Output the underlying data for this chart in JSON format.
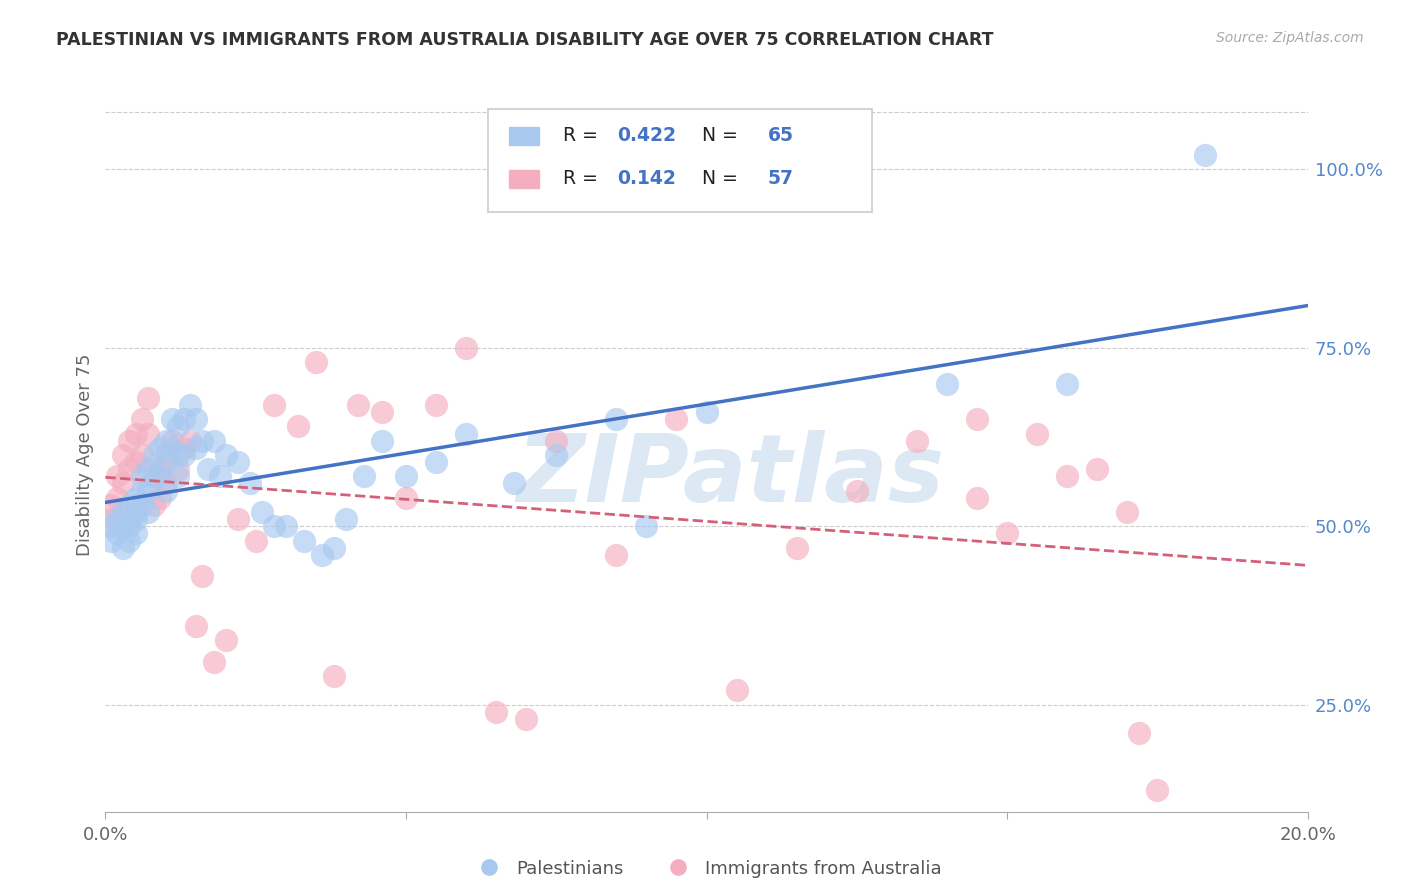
{
  "title": "PALESTINIAN VS IMMIGRANTS FROM AUSTRALIA DISABILITY AGE OVER 75 CORRELATION CHART",
  "source": "Source: ZipAtlas.com",
  "ylabel": "Disability Age Over 75",
  "xlim": [
    0.0,
    0.2
  ],
  "ylim": [
    0.1,
    1.1
  ],
  "right_yticks": [
    0.25,
    0.5,
    0.75,
    1.0
  ],
  "right_yticklabels": [
    "25.0%",
    "50.0%",
    "75.0%",
    "100.0%"
  ],
  "series1_label": "Palestinians",
  "series1_R": "0.422",
  "series1_N": "65",
  "series1_color": "#a8c8f0",
  "series1_line_color": "#4472c4",
  "series2_label": "Immigrants from Australia",
  "series2_R": "0.142",
  "series2_N": "57",
  "series2_color": "#f4aec0",
  "series2_line_color": "#d4607a",
  "background_color": "#ffffff",
  "grid_color": "#cccccc",
  "title_color": "#333333",
  "right_tick_color": "#5588cc",
  "watermark_color": "#dde8f5",
  "legend_text_color": "#222222",
  "legend_value_color": "#4472c4",
  "blue_points_x": [
    0.001,
    0.001,
    0.002,
    0.002,
    0.003,
    0.003,
    0.003,
    0.004,
    0.004,
    0.004,
    0.004,
    0.005,
    0.005,
    0.005,
    0.005,
    0.006,
    0.006,
    0.006,
    0.007,
    0.007,
    0.007,
    0.008,
    0.008,
    0.009,
    0.009,
    0.01,
    0.01,
    0.01,
    0.011,
    0.011,
    0.012,
    0.012,
    0.012,
    0.013,
    0.013,
    0.014,
    0.015,
    0.015,
    0.016,
    0.017,
    0.018,
    0.019,
    0.02,
    0.022,
    0.024,
    0.026,
    0.028,
    0.03,
    0.033,
    0.036,
    0.038,
    0.04,
    0.043,
    0.046,
    0.05,
    0.055,
    0.06,
    0.068,
    0.075,
    0.085,
    0.09,
    0.1,
    0.14,
    0.16,
    0.183
  ],
  "blue_points_y": [
    0.5,
    0.48,
    0.51,
    0.49,
    0.52,
    0.5,
    0.47,
    0.53,
    0.51,
    0.5,
    0.48,
    0.54,
    0.52,
    0.51,
    0.49,
    0.57,
    0.55,
    0.53,
    0.58,
    0.55,
    0.52,
    0.6,
    0.57,
    0.61,
    0.57,
    0.62,
    0.59,
    0.55,
    0.65,
    0.61,
    0.64,
    0.6,
    0.57,
    0.65,
    0.6,
    0.67,
    0.65,
    0.61,
    0.62,
    0.58,
    0.62,
    0.57,
    0.6,
    0.59,
    0.56,
    0.52,
    0.5,
    0.5,
    0.48,
    0.46,
    0.47,
    0.51,
    0.57,
    0.62,
    0.57,
    0.59,
    0.63,
    0.56,
    0.6,
    0.65,
    0.5,
    0.66,
    0.7,
    0.7,
    1.02
  ],
  "pink_points_x": [
    0.001,
    0.001,
    0.002,
    0.002,
    0.003,
    0.003,
    0.004,
    0.004,
    0.005,
    0.005,
    0.006,
    0.006,
    0.007,
    0.007,
    0.008,
    0.008,
    0.009,
    0.009,
    0.01,
    0.01,
    0.011,
    0.012,
    0.013,
    0.014,
    0.015,
    0.016,
    0.018,
    0.02,
    0.022,
    0.025,
    0.028,
    0.032,
    0.035,
    0.038,
    0.042,
    0.046,
    0.05,
    0.055,
    0.06,
    0.065,
    0.07,
    0.075,
    0.085,
    0.095,
    0.105,
    0.115,
    0.125,
    0.135,
    0.145,
    0.15,
    0.155,
    0.16,
    0.165,
    0.17,
    0.172,
    0.175,
    0.145
  ],
  "pink_points_y": [
    0.53,
    0.51,
    0.57,
    0.54,
    0.6,
    0.56,
    0.62,
    0.58,
    0.63,
    0.59,
    0.65,
    0.6,
    0.68,
    0.63,
    0.57,
    0.53,
    0.58,
    0.54,
    0.6,
    0.56,
    0.62,
    0.58,
    0.61,
    0.62,
    0.36,
    0.43,
    0.31,
    0.34,
    0.51,
    0.48,
    0.67,
    0.64,
    0.73,
    0.29,
    0.67,
    0.66,
    0.54,
    0.67,
    0.75,
    0.24,
    0.23,
    0.62,
    0.46,
    0.65,
    0.27,
    0.47,
    0.55,
    0.62,
    0.54,
    0.49,
    0.63,
    0.57,
    0.58,
    0.52,
    0.21,
    0.13,
    0.65
  ]
}
